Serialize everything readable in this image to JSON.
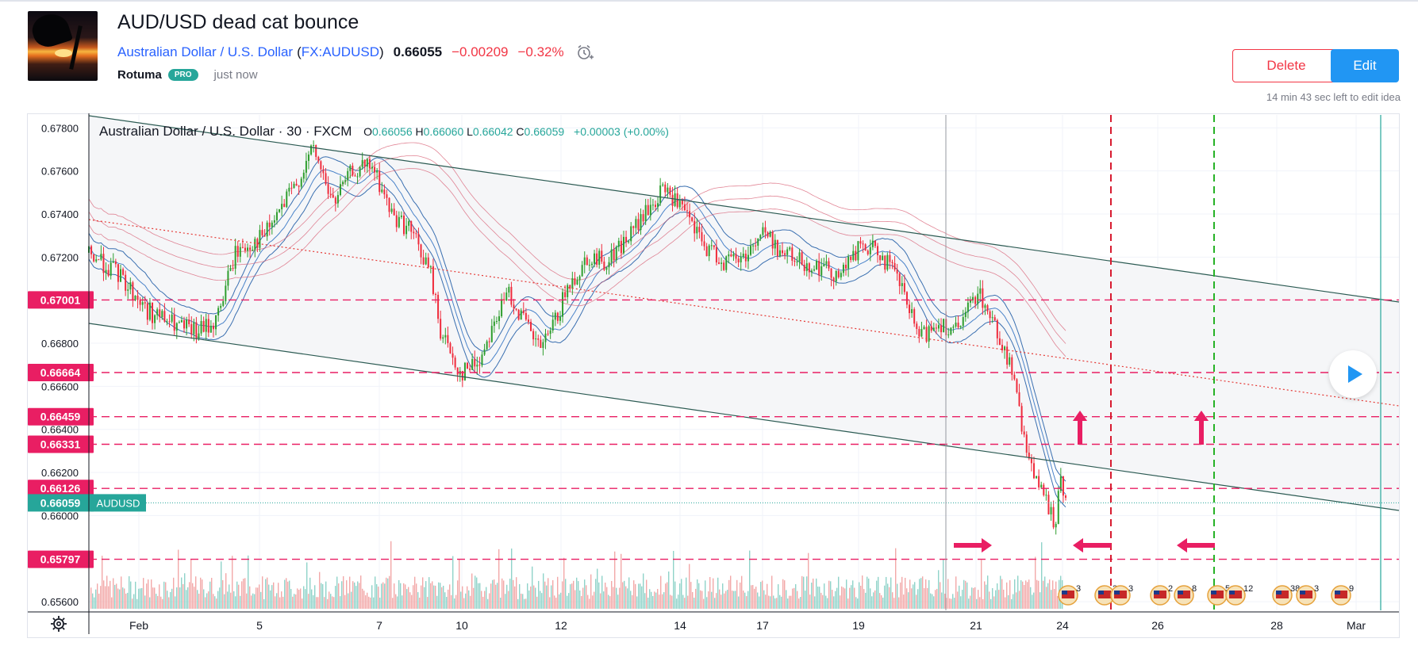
{
  "idea": {
    "title": "AUD/USD dead cat bounce",
    "symbol_name": "Australian Dollar / U.S. Dollar",
    "symbol_open": "(",
    "symbol_code": "FX:AUDUSD",
    "symbol_close": ")",
    "price": "0.66055",
    "change": "−0.00209",
    "change_pct": "−0.32%",
    "author": "Rotuma",
    "badge": "PRO",
    "timestamp": "just now"
  },
  "actions": {
    "delete_label": "Delete",
    "edit_label": "Edit",
    "edit_note": "14 min 43 sec left to edit idea"
  },
  "legend": {
    "symbol": "Australian Dollar / U.S. Dollar · 30 · FXCM",
    "o_label": "O",
    "o": "0.66056",
    "h_label": "H",
    "h": "0.66060",
    "l_label": "L",
    "l": "0.66042",
    "c_label": "C",
    "c": "0.66059",
    "change": "+0.00003 (+0.00%)"
  },
  "colors": {
    "up": "#26a69a",
    "up_bar": "#2e9e2e",
    "down": "#ef2b3b",
    "level": "#e91e63",
    "channel": "#2b5a52",
    "vline_red": "#d81b30",
    "vline_green": "#26b226",
    "last_price": "#26a69a"
  },
  "chart_data": {
    "type": "candlestick",
    "symbol": "AUDUSD",
    "interval": "30",
    "source": "FXCM",
    "ylim": [
      0.6556,
      0.6786
    ],
    "y_ticks": [
      "0.67800",
      "0.67600",
      "0.67400",
      "0.67200",
      "0.66800",
      "0.66600",
      "0.66400",
      "0.66200",
      "0.66000",
      "0.65600"
    ],
    "x_ticks": [
      "Feb",
      "5",
      "7",
      "10",
      "12",
      "14",
      "17",
      "19",
      "21",
      "24",
      "26",
      "28",
      "Mar"
    ],
    "horizontal_levels": [
      "0.67001",
      "0.66664",
      "0.66459",
      "0.66331",
      "0.66126",
      "0.65797"
    ],
    "last_price": {
      "label": "AUDUSD",
      "value": "0.66059"
    },
    "price_path": [
      [
        0,
        0.6722
      ],
      [
        0.03,
        0.6712
      ],
      [
        0.06,
        0.6695
      ],
      [
        0.09,
        0.6688
      ],
      [
        0.11,
        0.6685
      ],
      [
        0.13,
        0.669
      ],
      [
        0.15,
        0.6722
      ],
      [
        0.18,
        0.673
      ],
      [
        0.21,
        0.6752
      ],
      [
        0.23,
        0.677
      ],
      [
        0.25,
        0.6745
      ],
      [
        0.27,
        0.676
      ],
      [
        0.29,
        0.6762
      ],
      [
        0.31,
        0.674
      ],
      [
        0.33,
        0.6732
      ],
      [
        0.35,
        0.6712
      ],
      [
        0.36,
        0.6686
      ],
      [
        0.38,
        0.6666
      ],
      [
        0.4,
        0.6672
      ],
      [
        0.41,
        0.6685
      ],
      [
        0.43,
        0.6704
      ],
      [
        0.44,
        0.6695
      ],
      [
        0.46,
        0.6678
      ],
      [
        0.47,
        0.6682
      ],
      [
        0.49,
        0.6705
      ],
      [
        0.51,
        0.672
      ],
      [
        0.53,
        0.6718
      ],
      [
        0.55,
        0.6728
      ],
      [
        0.57,
        0.674
      ],
      [
        0.59,
        0.6752
      ],
      [
        0.61,
        0.674
      ],
      [
        0.63,
        0.6725
      ],
      [
        0.65,
        0.6718
      ],
      [
        0.67,
        0.672
      ],
      [
        0.69,
        0.6732
      ],
      [
        0.71,
        0.6722
      ],
      [
        0.73,
        0.6718
      ],
      [
        0.75,
        0.6715
      ],
      [
        0.77,
        0.6712
      ],
      [
        0.79,
        0.6725
      ],
      [
        0.81,
        0.6722
      ],
      [
        0.83,
        0.6708
      ],
      [
        0.85,
        0.6682
      ],
      [
        0.87,
        0.669
      ],
      [
        0.89,
        0.6685
      ],
      [
        0.91,
        0.6705
      ],
      [
        0.93,
        0.6685
      ],
      [
        0.945,
        0.6668
      ],
      [
        0.955,
        0.664
      ],
      [
        0.965,
        0.6625
      ],
      [
        0.975,
        0.661
      ],
      [
        0.985,
        0.6602
      ],
      [
        0.99,
        0.6594
      ],
      [
        0.995,
        0.662
      ],
      [
        1.0,
        0.6606
      ]
    ],
    "annotations": {
      "arrows_up_count": 2,
      "arrows_left_count": 2,
      "arrows_right_count": 1,
      "event_flags": [
        "3",
        "3",
        "3",
        "2",
        "8",
        "5",
        "12",
        "38",
        "3",
        "9"
      ]
    }
  }
}
